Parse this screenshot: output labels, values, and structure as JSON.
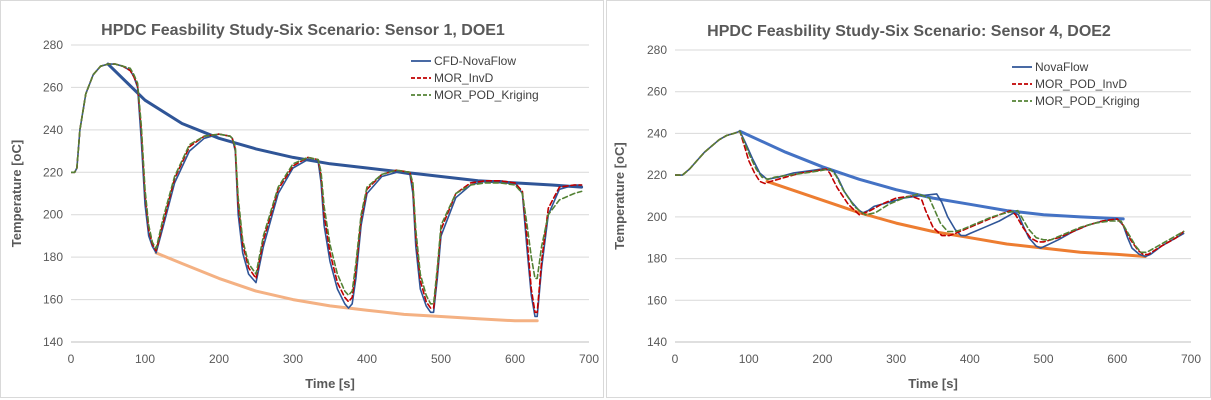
{
  "chart_data": [
    {
      "type": "line",
      "title": "HPDC Feasbility Study-Six Scenario: Sensor 1, DOE1",
      "xlabel": "Time [s]",
      "ylabel": "Temperature [oC]",
      "xlim": [
        0,
        700
      ],
      "ylim": [
        140,
        280
      ],
      "xticks": [
        0,
        100,
        200,
        300,
        400,
        500,
        600,
        700
      ],
      "yticks": [
        140,
        160,
        180,
        200,
        220,
        240,
        260,
        280
      ],
      "grid": "horizontal",
      "legend_position": "top-right",
      "series": [
        {
          "name": "CFD-NovaFlow",
          "color": "#2f5597",
          "dash": "solid",
          "in_legend": true,
          "x": [
            0,
            5,
            8,
            12,
            20,
            30,
            40,
            50,
            60,
            70,
            80,
            85,
            90,
            95,
            100,
            105,
            110,
            115,
            125,
            140,
            160,
            180,
            200,
            215,
            218,
            222,
            226,
            232,
            240,
            250,
            260,
            280,
            300,
            320,
            334,
            338,
            342,
            350,
            360,
            370,
            375,
            380,
            385,
            392,
            400,
            420,
            440,
            458,
            462,
            466,
            472,
            480,
            486,
            490,
            495,
            500,
            520,
            540,
            560,
            580,
            600,
            610,
            616,
            622,
            627,
            630,
            636,
            645,
            660,
            680,
            690
          ],
          "y": [
            220,
            220,
            222,
            240,
            257,
            266,
            270,
            271,
            271,
            270,
            268,
            265,
            260,
            235,
            205,
            190,
            185,
            182,
            195,
            215,
            230,
            236,
            238,
            237,
            236,
            230,
            200,
            182,
            172,
            168,
            185,
            210,
            222,
            226,
            225,
            215,
            195,
            178,
            165,
            158,
            156,
            158,
            170,
            195,
            210,
            218,
            220,
            219,
            210,
            185,
            165,
            157,
            154,
            154,
            170,
            190,
            208,
            214,
            216,
            216,
            215,
            210,
            185,
            162,
            152,
            152,
            175,
            200,
            212,
            214,
            214
          ]
        },
        {
          "name": "MOR_InvD",
          "color": "#c00000",
          "dash": "dashed",
          "in_legend": true,
          "x": [
            0,
            5,
            8,
            12,
            20,
            30,
            40,
            50,
            60,
            70,
            80,
            85,
            90,
            95,
            100,
            105,
            110,
            115,
            125,
            140,
            160,
            180,
            200,
            215,
            218,
            222,
            226,
            232,
            240,
            250,
            260,
            280,
            300,
            320,
            334,
            338,
            342,
            350,
            360,
            370,
            375,
            380,
            385,
            392,
            400,
            420,
            440,
            458,
            462,
            466,
            472,
            480,
            486,
            490,
            495,
            500,
            520,
            540,
            560,
            580,
            600,
            610,
            616,
            622,
            627,
            630,
            636,
            645,
            660,
            680,
            690
          ],
          "y": [
            220,
            220,
            222,
            240,
            257,
            266,
            270,
            271,
            271,
            270,
            268,
            265,
            261,
            240,
            210,
            193,
            186,
            183,
            197,
            217,
            232,
            237,
            238,
            237,
            236,
            231,
            205,
            186,
            175,
            170,
            188,
            212,
            223,
            227,
            226,
            218,
            200,
            182,
            168,
            161,
            159,
            161,
            174,
            198,
            212,
            219,
            221,
            220,
            213,
            190,
            169,
            159,
            156,
            156,
            173,
            193,
            210,
            215,
            216,
            216,
            215,
            211,
            190,
            165,
            154,
            154,
            178,
            203,
            213,
            214,
            214
          ]
        },
        {
          "name": "MOR_POD_Kriging",
          "color": "#548235",
          "dash": "dashed",
          "in_legend": true,
          "x": [
            0,
            5,
            8,
            12,
            20,
            30,
            40,
            50,
            60,
            70,
            80,
            85,
            90,
            95,
            100,
            105,
            110,
            115,
            125,
            140,
            160,
            180,
            200,
            215,
            218,
            222,
            226,
            232,
            240,
            250,
            260,
            280,
            300,
            320,
            334,
            338,
            342,
            350,
            360,
            370,
            375,
            380,
            385,
            392,
            400,
            420,
            440,
            458,
            462,
            466,
            472,
            480,
            486,
            490,
            495,
            500,
            520,
            540,
            560,
            580,
            600,
            610,
            616,
            622,
            627,
            630,
            636,
            645,
            660,
            680,
            690
          ],
          "y": [
            220,
            220,
            222,
            240,
            257,
            266,
            270,
            271,
            271,
            270,
            269,
            266,
            262,
            242,
            212,
            195,
            187,
            184,
            199,
            218,
            233,
            237,
            238,
            237,
            236,
            232,
            208,
            188,
            177,
            172,
            190,
            213,
            224,
            227,
            226,
            220,
            204,
            186,
            172,
            164,
            162,
            164,
            177,
            200,
            213,
            219,
            221,
            220,
            215,
            193,
            172,
            162,
            158,
            158,
            175,
            195,
            210,
            214,
            215,
            215,
            214,
            210,
            196,
            180,
            170,
            170,
            185,
            200,
            207,
            210,
            211
          ]
        },
        {
          "name": "upper-envelope",
          "color": "#2f5597",
          "dash": "solid",
          "in_legend": false,
          "x": [
            50,
            100,
            150,
            200,
            250,
            300,
            350,
            400,
            450,
            500,
            550,
            600,
            650,
            690
          ],
          "y": [
            271,
            254,
            243,
            236,
            231,
            227,
            224,
            222,
            220,
            218,
            216,
            215,
            214,
            213
          ]
        },
        {
          "name": "lower-envelope",
          "color": "#f4b183",
          "dash": "solid",
          "in_legend": false,
          "x": [
            115,
            150,
            200,
            250,
            300,
            350,
            400,
            450,
            500,
            550,
            600,
            630
          ],
          "y": [
            182,
            177,
            170,
            164,
            160,
            157,
            155,
            153,
            152,
            151,
            150,
            150
          ]
        }
      ]
    },
    {
      "type": "line",
      "title": "HPDC Feasbility Study-Six Scenario: Sensor 4, DOE2",
      "xlabel": "Time [s]",
      "ylabel": "Temperature [oC]",
      "xlim": [
        0,
        700
      ],
      "ylim": [
        140,
        280
      ],
      "xticks": [
        0,
        100,
        200,
        300,
        400,
        500,
        600,
        700
      ],
      "yticks": [
        140,
        160,
        180,
        200,
        220,
        240,
        260,
        280
      ],
      "grid": "horizontal",
      "legend_position": "top-right",
      "series": [
        {
          "name": "NovaFlow",
          "color": "#2f5597",
          "dash": "solid",
          "in_legend": true,
          "x": [
            0,
            10,
            20,
            30,
            40,
            50,
            60,
            70,
            80,
            88,
            95,
            105,
            115,
            125,
            140,
            160,
            180,
            200,
            215,
            222,
            230,
            240,
            250,
            255,
            262,
            270,
            290,
            310,
            330,
            355,
            362,
            370,
            380,
            388,
            394,
            400,
            420,
            440,
            460,
            466,
            472,
            480,
            490,
            496,
            502,
            520,
            540,
            560,
            580,
            600,
            608,
            614,
            620,
            630,
            638,
            645,
            660,
            680,
            690
          ],
          "y": [
            220,
            220,
            223,
            227,
            231,
            234,
            237,
            239,
            240,
            241,
            236,
            228,
            221,
            218,
            219,
            221,
            222,
            223,
            222,
            218,
            212,
            207,
            203,
            202,
            203,
            205,
            207,
            209,
            210,
            211,
            207,
            200,
            194,
            191,
            191,
            192,
            195,
            198,
            202,
            201,
            196,
            190,
            186,
            185,
            186,
            189,
            193,
            196,
            198,
            199,
            196,
            190,
            185,
            182,
            181,
            182,
            186,
            190,
            192
          ]
        },
        {
          "name": "MOR_POD_InvD",
          "color": "#c00000",
          "dash": "dashed",
          "in_legend": true,
          "x": [
            0,
            10,
            20,
            30,
            40,
            50,
            60,
            70,
            80,
            88,
            95,
            100,
            108,
            115,
            122,
            130,
            150,
            170,
            190,
            205,
            210,
            220,
            235,
            250,
            265,
            280,
            300,
            320,
            335,
            340,
            350,
            362,
            372,
            380,
            400,
            420,
            440,
            455,
            462,
            472,
            482,
            492,
            500,
            520,
            540,
            560,
            580,
            600,
            608,
            618,
            628,
            635,
            642,
            660,
            680,
            690
          ],
          "y": [
            220,
            220,
            223,
            227,
            231,
            234,
            237,
            239,
            240,
            241,
            233,
            227,
            221,
            217,
            216,
            217,
            219,
            221,
            222,
            223,
            221,
            214,
            206,
            201,
            203,
            206,
            209,
            210,
            208,
            203,
            195,
            191,
            191,
            192,
            195,
            198,
            201,
            203,
            201,
            195,
            190,
            188,
            188,
            190,
            193,
            196,
            198,
            199,
            196,
            189,
            184,
            182,
            182,
            186,
            190,
            193
          ]
        },
        {
          "name": "MOR_POD_Kriging",
          "color": "#548235",
          "dash": "dashed",
          "in_legend": true,
          "x": [
            0,
            10,
            20,
            30,
            40,
            50,
            60,
            70,
            80,
            88,
            95,
            102,
            110,
            118,
            126,
            135,
            155,
            175,
            195,
            210,
            218,
            228,
            243,
            258,
            272,
            290,
            310,
            330,
            345,
            350,
            360,
            370,
            380,
            390,
            410,
            430,
            450,
            465,
            470,
            480,
            490,
            500,
            510,
            530,
            550,
            570,
            590,
            605,
            615,
            625,
            632,
            640,
            660,
            680,
            690
          ],
          "y": [
            220,
            220,
            223,
            227,
            231,
            234,
            237,
            239,
            240,
            241,
            235,
            229,
            223,
            219,
            218,
            219,
            220,
            221,
            222,
            223,
            220,
            213,
            205,
            201,
            202,
            206,
            209,
            211,
            209,
            205,
            197,
            193,
            193,
            194,
            197,
            200,
            202,
            203,
            200,
            194,
            190,
            189,
            189,
            192,
            195,
            197,
            198,
            198,
            192,
            186,
            183,
            183,
            187,
            191,
            193
          ]
        },
        {
          "name": "upper-envelope",
          "color": "#4472c4",
          "dash": "solid",
          "in_legend": false,
          "x": [
            88,
            150,
            200,
            250,
            300,
            350,
            400,
            450,
            500,
            550,
            608
          ],
          "y": [
            241,
            231,
            224,
            218,
            213,
            209,
            206,
            203,
            201,
            200,
            199
          ]
        },
        {
          "name": "lower-envelope",
          "color": "#ed7d31",
          "dash": "solid",
          "in_legend": false,
          "x": [
            125,
            200,
            250,
            300,
            350,
            400,
            450,
            500,
            550,
            600,
            638
          ],
          "y": [
            217,
            208,
            202,
            197,
            193,
            190,
            187,
            185,
            183,
            182,
            181
          ]
        }
      ]
    }
  ]
}
